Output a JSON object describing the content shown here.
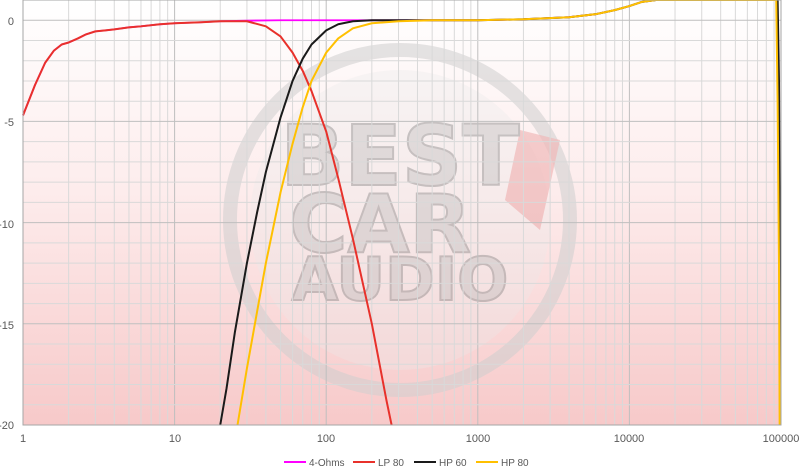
{
  "chart_data": {
    "type": "line",
    "x_scale": "log",
    "xlim": [
      1,
      100000
    ],
    "ylim": [
      -20,
      1
    ],
    "x_ticks": [
      "1",
      "10",
      "100",
      "1000",
      "10000",
      "100000"
    ],
    "y_ticks": [
      "0",
      "-5",
      "-10",
      "-15",
      "-20"
    ],
    "grid": true,
    "legend_position": "bottom",
    "watermark": [
      "BEST",
      "CAR",
      "AUDIO"
    ],
    "series": [
      {
        "name": "4-Ohms",
        "color": "#ff00ff",
        "points": [
          [
            1,
            -4.7
          ],
          [
            1.2,
            -3.2
          ],
          [
            1.4,
            -2.1
          ],
          [
            1.6,
            -1.5
          ],
          [
            1.8,
            -1.2
          ],
          [
            2,
            -1.1
          ],
          [
            2.3,
            -0.9
          ],
          [
            2.6,
            -0.7
          ],
          [
            3,
            -0.55
          ],
          [
            3.5,
            -0.5
          ],
          [
            4,
            -0.45
          ],
          [
            5,
            -0.35
          ],
          [
            6,
            -0.3
          ],
          [
            8,
            -0.2
          ],
          [
            10,
            -0.15
          ],
          [
            15,
            -0.1
          ],
          [
            20,
            -0.05
          ],
          [
            30,
            -0.02
          ],
          [
            50,
            0
          ],
          [
            100,
            0
          ],
          [
            200,
            0
          ],
          [
            500,
            0
          ],
          [
            1000,
            0
          ],
          [
            2000,
            0.05
          ],
          [
            4000,
            0.15
          ],
          [
            6000,
            0.3
          ],
          [
            8000,
            0.5
          ],
          [
            10000,
            0.7
          ],
          [
            12000,
            0.9
          ],
          [
            15000,
            1.0
          ]
        ]
      },
      {
        "name": "LP 80",
        "color": "#e8312b",
        "points": [
          [
            1,
            -4.7
          ],
          [
            1.2,
            -3.2
          ],
          [
            1.4,
            -2.1
          ],
          [
            1.6,
            -1.5
          ],
          [
            1.8,
            -1.2
          ],
          [
            2,
            -1.1
          ],
          [
            2.3,
            -0.9
          ],
          [
            2.6,
            -0.7
          ],
          [
            3,
            -0.55
          ],
          [
            3.5,
            -0.5
          ],
          [
            4,
            -0.45
          ],
          [
            5,
            -0.35
          ],
          [
            6,
            -0.3
          ],
          [
            8,
            -0.2
          ],
          [
            10,
            -0.15
          ],
          [
            15,
            -0.1
          ],
          [
            20,
            -0.05
          ],
          [
            30,
            -0.05
          ],
          [
            40,
            -0.3
          ],
          [
            50,
            -0.8
          ],
          [
            60,
            -1.6
          ],
          [
            70,
            -2.5
          ],
          [
            80,
            -3.5
          ],
          [
            100,
            -5.5
          ],
          [
            120,
            -7.8
          ],
          [
            150,
            -10.8
          ],
          [
            200,
            -15
          ],
          [
            250,
            -18.8
          ],
          [
            270,
            -20
          ]
        ]
      },
      {
        "name": "HP 60",
        "color": "#1a1a1a",
        "points": [
          [
            20,
            -20
          ],
          [
            22,
            -18.2
          ],
          [
            25,
            -15.4
          ],
          [
            30,
            -12
          ],
          [
            35,
            -9.5
          ],
          [
            40,
            -7.5
          ],
          [
            50,
            -4.8
          ],
          [
            60,
            -3
          ],
          [
            70,
            -1.9
          ],
          [
            80,
            -1.2
          ],
          [
            100,
            -0.5
          ],
          [
            120,
            -0.2
          ],
          [
            150,
            -0.05
          ],
          [
            200,
            0
          ],
          [
            500,
            0
          ],
          [
            1000,
            0
          ],
          [
            2000,
            0.05
          ],
          [
            4000,
            0.15
          ],
          [
            6000,
            0.3
          ],
          [
            8000,
            0.5
          ],
          [
            10000,
            0.7
          ],
          [
            12000,
            0.9
          ],
          [
            15000,
            1.0
          ],
          [
            95000,
            1.0
          ],
          [
            97000,
            -3
          ],
          [
            98000,
            -10
          ],
          [
            98500,
            -20
          ]
        ]
      },
      {
        "name": "HP 80",
        "color": "#ffc000",
        "points": [
          [
            26,
            -20
          ],
          [
            30,
            -17.2
          ],
          [
            35,
            -14.4
          ],
          [
            40,
            -12
          ],
          [
            50,
            -8.5
          ],
          [
            60,
            -6.1
          ],
          [
            70,
            -4.3
          ],
          [
            80,
            -3
          ],
          [
            100,
            -1.6
          ],
          [
            120,
            -0.9
          ],
          [
            150,
            -0.4
          ],
          [
            200,
            -0.15
          ],
          [
            300,
            -0.05
          ],
          [
            500,
            0
          ],
          [
            1000,
            0
          ],
          [
            2000,
            0.05
          ],
          [
            4000,
            0.15
          ],
          [
            6000,
            0.3
          ],
          [
            8000,
            0.5
          ],
          [
            10000,
            0.7
          ],
          [
            12000,
            0.9
          ],
          [
            15000,
            1.0
          ],
          [
            93000,
            1.0
          ],
          [
            95000,
            -4
          ],
          [
            97000,
            -12
          ],
          [
            98000,
            -20
          ]
        ]
      }
    ]
  }
}
